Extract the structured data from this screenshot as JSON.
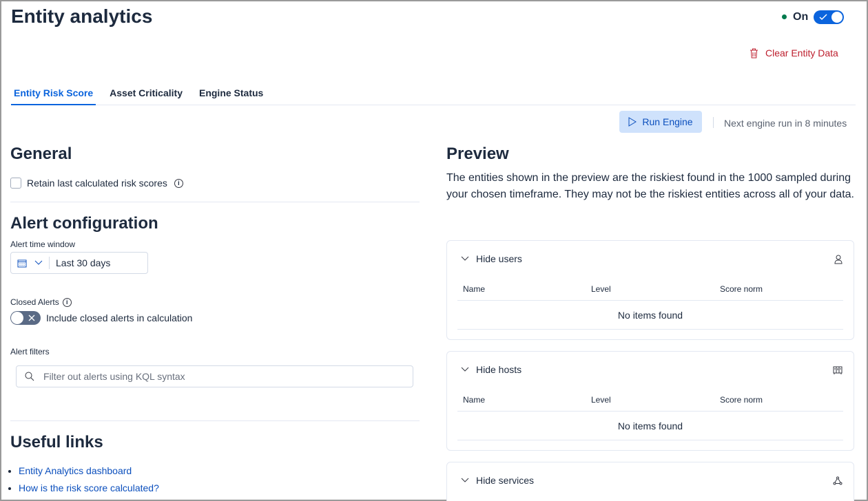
{
  "page_title": "Entity analytics",
  "engine_toggle": {
    "label": "On",
    "state": true,
    "status_color": "#007a4d"
  },
  "clear_button": "Clear Entity Data",
  "tabs": [
    {
      "label": "Entity Risk Score",
      "active": true
    },
    {
      "label": "Asset Criticality"
    },
    {
      "label": "Engine Status"
    }
  ],
  "run_engine": {
    "label": "Run Engine",
    "next_run": "Next engine run in 8 minutes"
  },
  "general": {
    "title": "General",
    "retain_label": "Retain last calculated risk scores"
  },
  "alert_config": {
    "title": "Alert configuration",
    "time_window_label": "Alert time window",
    "time_window_value": "Last 30 days",
    "closed_alerts_label": "Closed Alerts",
    "closed_alerts_toggle": "Include closed alerts in calculation",
    "filters_label": "Alert filters",
    "filters_placeholder": "Filter out alerts using KQL syntax"
  },
  "useful_links": {
    "title": "Useful links",
    "links": [
      "Entity Analytics dashboard",
      "How is the risk score calculated?"
    ]
  },
  "preview": {
    "title": "Preview",
    "description": "The entities shown in the preview are the riskiest found in the 1000 sampled during your chosen timeframe. They may not be the riskiest entities across all of your data.",
    "columns": [
      "Name",
      "Level",
      "Score norm"
    ],
    "empty": "No items found",
    "panels": [
      {
        "label": "Hide users",
        "icon": "user-icon"
      },
      {
        "label": "Hide hosts",
        "icon": "storage-icon"
      },
      {
        "label": "Hide services",
        "icon": "graph-icon"
      }
    ]
  }
}
